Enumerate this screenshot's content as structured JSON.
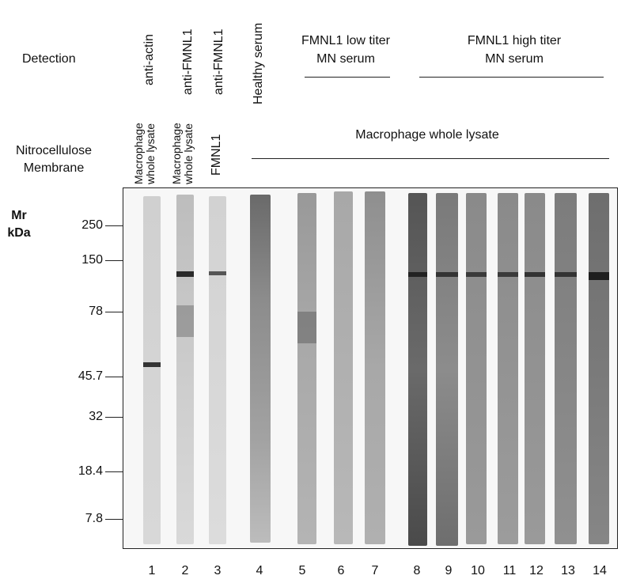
{
  "detection_label": "Detection",
  "membrane_label": [
    "Nitrocellulose",
    "Membrane"
  ],
  "mr_label": [
    "Mr",
    "kDa"
  ],
  "antibodies": {
    "lane1": "anti-actin",
    "lane2": "anti-FMNL1",
    "lane3": "anti-FMNL1",
    "lane4": "Healthy serum"
  },
  "groups": {
    "low_titer": [
      "FMNL1 low titer",
      "MN serum"
    ],
    "high_titer": [
      "FMNL1 high titer",
      "MN serum"
    ]
  },
  "membranes": {
    "lane1": [
      "Macrophage",
      "whole lysate"
    ],
    "lane2": [
      "Macrophage",
      "whole lysate"
    ],
    "lane3": "FMNL1",
    "shared": "Macrophage whole lysate"
  },
  "mw_markers": [
    "250",
    "150",
    "78",
    "45.7",
    "32",
    "18.4",
    "7.8"
  ],
  "lanes": [
    "1",
    "2",
    "3",
    "4",
    "5",
    "6",
    "7",
    "8",
    "9",
    "10",
    "11",
    "12",
    "13",
    "14"
  ]
}
